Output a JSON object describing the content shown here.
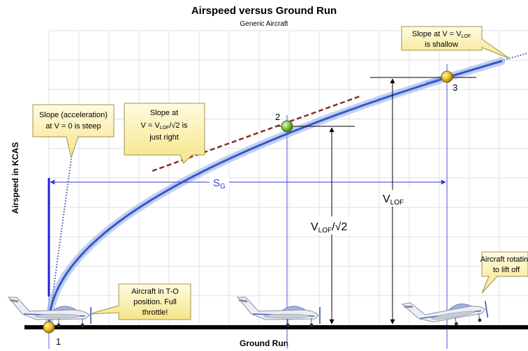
{
  "header": {
    "title": "Airspeed versus Ground Run",
    "subtitle": "Generic Aircraft"
  },
  "axes": {
    "y_label": "Airspeed in KCAS",
    "x_label": "Ground Run"
  },
  "points": [
    "1",
    "2",
    "3"
  ],
  "dimensions": {
    "ground_run": {
      "main": "S",
      "sub": "G"
    },
    "v_lof": {
      "main": "V",
      "sub": "LOF"
    },
    "v_lof_root2": {
      "main": "V",
      "sub": "LOF",
      "suffix": "/√2"
    }
  },
  "callouts": [
    {
      "lines": [
        "Slope (acceleration)",
        "at V = 0 is steep"
      ]
    },
    {
      "lines": [
        "Slope at",
        {
          "before": "V = V",
          "sub": "LOF",
          "after": "/√2 is"
        },
        "just right"
      ]
    },
    {
      "lines": [
        {
          "before": "Slope at V = V",
          "sub": "LOF"
        },
        "is shallow"
      ]
    },
    {
      "lines": [
        "Aircraft in T-O",
        "position. Full",
        "throttle!"
      ]
    },
    {
      "lines": [
        "Aircraft rotating",
        "to lift off"
      ]
    }
  ]
}
